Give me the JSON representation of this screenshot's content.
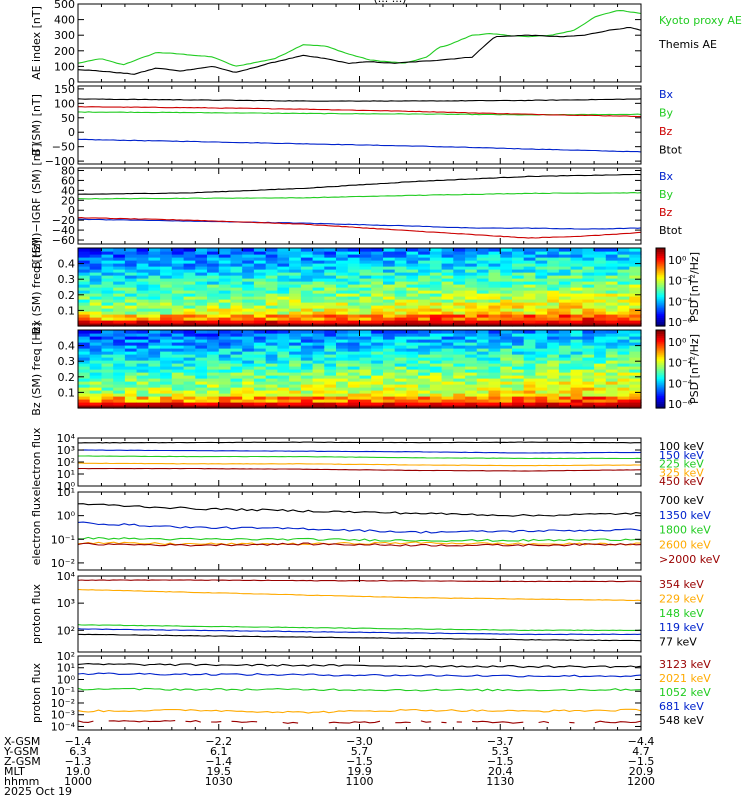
{
  "header_partial": "(... ...)",
  "colors": {
    "black": "#000000",
    "blue": "#0022cc",
    "green": "#22cc22",
    "red": "#cc0000",
    "orange": "#ffaa00",
    "darkred": "#990000"
  },
  "chart_data": [
    {
      "id": "ae",
      "type": "line",
      "ylabel": "AE index [nT]",
      "ylim": [
        0,
        500
      ],
      "yticks": [
        0,
        100,
        200,
        300,
        400,
        500
      ],
      "tick_labels": [
        "0",
        "100",
        "200",
        "300",
        "400",
        "500"
      ],
      "series": [
        {
          "name": "Kyoto proxy AE",
          "color": "green",
          "x": [
            0,
            4,
            8,
            14,
            18,
            24,
            28,
            35,
            40,
            44,
            48,
            52,
            58,
            62,
            64,
            66,
            70,
            73,
            76,
            80,
            84,
            88,
            92,
            96,
            100
          ],
          "values": [
            120,
            150,
            110,
            190,
            180,
            160,
            100,
            150,
            240,
            230,
            180,
            140,
            120,
            160,
            220,
            240,
            300,
            310,
            300,
            290,
            300,
            330,
            420,
            460,
            440
          ]
        },
        {
          "name": "Themis AE",
          "color": "black",
          "x": [
            0,
            4,
            10,
            14,
            18,
            24,
            28,
            34,
            40,
            44,
            48,
            52,
            56,
            60,
            64,
            70,
            74,
            80,
            86,
            90,
            94,
            98,
            100
          ],
          "values": [
            80,
            70,
            50,
            90,
            70,
            100,
            60,
            120,
            170,
            150,
            120,
            130,
            120,
            130,
            140,
            160,
            290,
            300,
            290,
            300,
            330,
            350,
            330
          ]
        }
      ]
    },
    {
      "id": "bsm",
      "type": "line",
      "ylabel": "B (SM) [nT]",
      "ylim": [
        -110,
        160
      ],
      "yticks": [
        -100,
        -50,
        0,
        50,
        100,
        150
      ],
      "tick_labels": [
        "−100",
        "−50",
        "0",
        "50",
        "100",
        "150"
      ],
      "series": [
        {
          "name": "Bx",
          "color": "blue",
          "x": [
            0,
            20,
            40,
            60,
            80,
            100
          ],
          "values": [
            -25,
            -32,
            -40,
            -48,
            -58,
            -68
          ]
        },
        {
          "name": "By",
          "color": "green",
          "x": [
            0,
            20,
            40,
            60,
            80,
            100
          ],
          "values": [
            70,
            68,
            65,
            63,
            60,
            62
          ]
        },
        {
          "name": "Bz",
          "color": "red",
          "x": [
            0,
            20,
            40,
            60,
            80,
            100
          ],
          "values": [
            88,
            85,
            80,
            72,
            62,
            55
          ]
        },
        {
          "name": "Btot",
          "color": "black",
          "x": [
            0,
            20,
            40,
            60,
            80,
            100
          ],
          "values": [
            115,
            112,
            108,
            108,
            110,
            115
          ]
        }
      ]
    },
    {
      "id": "bigrf",
      "type": "line",
      "ylabel": "B (SM)−IGRF (SM) [nT]",
      "ylim": [
        -68,
        85
      ],
      "yticks": [
        -60,
        -40,
        -20,
        0,
        20,
        40,
        60,
        80
      ],
      "tick_labels": [
        "−60",
        "−40",
        "−20",
        "0",
        "20",
        "40",
        "60",
        "80"
      ],
      "series": [
        {
          "name": "Bx",
          "color": "blue",
          "x": [
            0,
            20,
            40,
            60,
            70,
            80,
            90,
            100
          ],
          "values": [
            -18,
            -22,
            -26,
            -32,
            -36,
            -36,
            -38,
            -36
          ]
        },
        {
          "name": "By",
          "color": "green",
          "x": [
            0,
            20,
            40,
            60,
            80,
            100
          ],
          "values": [
            23,
            24,
            25,
            30,
            34,
            35
          ]
        },
        {
          "name": "Bz",
          "color": "red",
          "x": [
            0,
            20,
            40,
            60,
            80,
            90,
            100
          ],
          "values": [
            -15,
            -20,
            -28,
            -42,
            -56,
            -52,
            -45
          ]
        },
        {
          "name": "Btot",
          "color": "black",
          "x": [
            0,
            20,
            40,
            60,
            80,
            100
          ],
          "values": [
            32,
            35,
            44,
            58,
            68,
            72
          ]
        }
      ]
    },
    {
      "id": "bxpsd",
      "type": "heatmap",
      "ylabel": "Bx (SM) freq [Hz]",
      "ylim": [
        0,
        0.5
      ],
      "yticks": [
        0.1,
        0.2,
        0.3,
        0.4
      ],
      "tick_labels": [
        "0.1",
        "0.2",
        "0.3",
        "0.4"
      ],
      "colorbar": {
        "label": "PSD [nT²/Hz]",
        "ticks": [
          "10⁰",
          "10⁻²",
          "10⁻⁴",
          "10⁻⁶"
        ]
      }
    },
    {
      "id": "bzpsd",
      "type": "heatmap",
      "ylabel": "Bz (SM) freq [Hz]",
      "ylim": [
        0,
        0.5
      ],
      "yticks": [
        0.1,
        0.2,
        0.3,
        0.4
      ],
      "tick_labels": [
        "0.1",
        "0.2",
        "0.3",
        "0.4"
      ],
      "colorbar": {
        "label": "PSD [nT²/Hz]",
        "ticks": [
          "10⁰",
          "10⁻²",
          "10⁻⁴",
          "10⁻⁶"
        ]
      }
    },
    {
      "id": "elec1",
      "type": "line",
      "log": true,
      "ylabel": "electron flux",
      "ylim": [
        0,
        4
      ],
      "yticks": [
        0,
        1,
        2,
        3,
        4
      ],
      "tick_labels": [
        "10⁰",
        "10¹",
        "10²",
        "10³",
        "10⁴"
      ],
      "series": [
        {
          "name": "100 keV",
          "color": "black",
          "x": [
            0,
            20,
            40,
            60,
            80,
            100
          ],
          "values": [
            3.6,
            3.62,
            3.65,
            3.62,
            3.65,
            3.6
          ]
        },
        {
          "name": "150 keV",
          "color": "blue",
          "x": [
            0,
            20,
            40,
            60,
            80,
            100
          ],
          "values": [
            3.0,
            2.95,
            2.9,
            2.85,
            2.75,
            2.8
          ]
        },
        {
          "name": "225 keV",
          "color": "green",
          "x": [
            0,
            20,
            40,
            60,
            80,
            100
          ],
          "values": [
            2.5,
            2.45,
            2.45,
            2.35,
            2.3,
            2.3
          ]
        },
        {
          "name": "325 keV",
          "color": "orange",
          "x": [
            0,
            20,
            40,
            60,
            80,
            100
          ],
          "values": [
            1.9,
            1.85,
            1.85,
            1.75,
            1.7,
            1.75
          ]
        },
        {
          "name": "450 keV",
          "color": "darkred",
          "x": [
            0,
            20,
            40,
            60,
            80,
            100
          ],
          "values": [
            1.45,
            1.45,
            1.4,
            1.3,
            1.25,
            1.35
          ]
        }
      ]
    },
    {
      "id": "elec2",
      "type": "line",
      "log": true,
      "ylabel": "electron flux",
      "ylim": [
        -2.3,
        1
      ],
      "yticks": [
        -2,
        -1,
        0,
        1
      ],
      "tick_labels": [
        "10⁻²",
        "10⁻¹",
        "10⁰",
        "10¹"
      ],
      "series": [
        {
          "name": "700 keV",
          "color": "black",
          "x": [
            0,
            20,
            40,
            60,
            80,
            100
          ],
          "values": [
            0.5,
            0.3,
            0.2,
            0.1,
            0.0,
            0.1
          ]
        },
        {
          "name": "1350 keV",
          "color": "blue",
          "x": [
            0,
            20,
            40,
            60,
            80,
            100
          ],
          "values": [
            -0.3,
            -0.5,
            -0.55,
            -0.7,
            -0.65,
            -0.6
          ]
        },
        {
          "name": "1800 keV",
          "color": "green",
          "x": [
            0,
            20,
            40,
            60,
            80,
            100
          ],
          "values": [
            -0.95,
            -1.0,
            -1.0,
            -1.05,
            -1.05,
            -1.0
          ]
        },
        {
          "name": "2600 keV",
          "color": "orange",
          "x": [
            0,
            20,
            40,
            60,
            80,
            100
          ],
          "values": [
            -1.15,
            -1.2,
            -1.2,
            -1.15,
            -1.2,
            -1.2
          ]
        },
        {
          "name": ">2000 keV",
          "color": "darkred",
          "x": [
            0,
            20,
            40,
            60,
            80,
            100
          ],
          "values": [
            -1.2,
            -1.25,
            -1.2,
            -1.25,
            -1.25,
            -1.2
          ]
        }
      ]
    },
    {
      "id": "prot1",
      "type": "line",
      "log": true,
      "ylabel": "proton flux",
      "ylim": [
        1.2,
        4
      ],
      "yticks": [
        2,
        3,
        4
      ],
      "tick_labels": [
        "10²",
        "10³",
        "10⁴"
      ],
      "series": [
        {
          "name": "354 keV",
          "color": "darkred",
          "x": [
            0,
            20,
            40,
            60,
            80,
            100
          ],
          "values": [
            3.85,
            3.85,
            3.83,
            3.82,
            3.8,
            3.8
          ]
        },
        {
          "name": "229 keV",
          "color": "orange",
          "x": [
            0,
            20,
            40,
            60,
            80,
            100
          ],
          "values": [
            3.5,
            3.4,
            3.3,
            3.2,
            3.15,
            3.1
          ]
        },
        {
          "name": "148 keV",
          "color": "green",
          "x": [
            0,
            20,
            40,
            60,
            80,
            100
          ],
          "values": [
            2.2,
            2.15,
            2.1,
            2.05,
            2.0,
            2.0
          ]
        },
        {
          "name": "119 keV",
          "color": "blue",
          "x": [
            0,
            20,
            40,
            60,
            80,
            100
          ],
          "values": [
            2.05,
            2.0,
            1.95,
            1.9,
            1.85,
            1.85
          ]
        },
        {
          "name": "77 keV",
          "color": "black",
          "x": [
            0,
            20,
            40,
            60,
            80,
            100
          ],
          "values": [
            1.85,
            1.8,
            1.75,
            1.7,
            1.65,
            1.62
          ]
        }
      ]
    },
    {
      "id": "prot2",
      "type": "line",
      "log": true,
      "ylabel": "proton flux",
      "ylim": [
        -4.3,
        2
      ],
      "yticks": [
        -4,
        -3,
        -2,
        -1,
        0,
        1,
        2
      ],
      "tick_labels": [
        "10⁻⁴",
        "10⁻³",
        "10⁻²",
        "10⁻¹",
        "10⁰",
        "10¹",
        "10²"
      ],
      "series": [
        {
          "name": "3123 keV",
          "color": "darkred",
          "x": [
            0,
            20,
            40,
            60,
            80,
            100
          ],
          "values": [
            -3.6,
            -3.55,
            -3.7,
            -3.6,
            -3.65,
            -3.6
          ]
        },
        {
          "name": "2021 keV",
          "color": "orange",
          "x": [
            0,
            20,
            40,
            60,
            80,
            100
          ],
          "values": [
            -2.7,
            -2.6,
            -2.8,
            -2.6,
            -2.7,
            -2.6
          ]
        },
        {
          "name": "1052 keV",
          "color": "green",
          "x": [
            0,
            20,
            40,
            60,
            80,
            100
          ],
          "values": [
            -0.8,
            -0.85,
            -0.85,
            -0.9,
            -0.9,
            -0.85
          ]
        },
        {
          "name": "681 keV",
          "color": "blue",
          "x": [
            0,
            20,
            40,
            60,
            80,
            100
          ],
          "values": [
            0.5,
            0.45,
            0.4,
            0.35,
            0.3,
            0.3
          ]
        },
        {
          "name": "548 keV",
          "color": "black",
          "x": [
            0,
            20,
            40,
            60,
            80,
            100
          ],
          "values": [
            1.3,
            1.25,
            1.2,
            1.15,
            1.1,
            1.1
          ]
        }
      ]
    }
  ],
  "xaxis": {
    "row_labels": [
      "X-GSM",
      "Y-GSM",
      "Z-GSM",
      "MLT",
      "hhmm",
      "2025 Oct 19"
    ],
    "columns": [
      [
        "−1.4",
        "6.3",
        "−1.3",
        "19.0",
        "1000"
      ],
      [
        "−2.2",
        "6.1",
        "−1.4",
        "19.5",
        "1030"
      ],
      [
        "−3.0",
        "5.7",
        "−1.5",
        "19.9",
        "1100"
      ],
      [
        "−3.7",
        "5.3",
        "−1.5",
        "20.4",
        "1130"
      ],
      [
        "−4.4",
        "4.7",
        "−1.5",
        "20.9",
        "1200"
      ]
    ]
  }
}
